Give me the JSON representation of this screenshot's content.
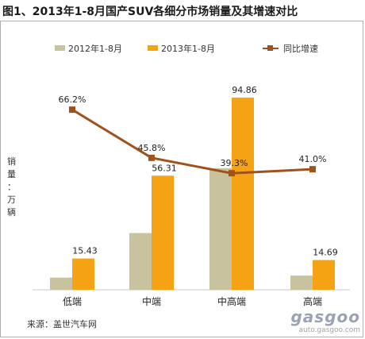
{
  "title": "图1、2013年1-8月国产SUV各细分市场销量及其增速对比",
  "source": "来源：盖世汽车网",
  "watermark": {
    "brand": "gasgoo",
    "url": "auto.gasgoo.com"
  },
  "chart_data": {
    "type": "bar",
    "categories": [
      "低端",
      "中端",
      "中高端",
      "高端"
    ],
    "ylabel": "销量：万辆",
    "series": [
      {
        "name": "2012年1-8月",
        "values": [
          6.0,
          28.0,
          60.0,
          7.0
        ],
        "color": "#c8c29f",
        "kind": "bar"
      },
      {
        "name": "2013年1-8月",
        "values": [
          15.43,
          56.31,
          94.86,
          14.69
        ],
        "color": "#f5a314",
        "kind": "bar",
        "labels": [
          "15.43",
          "56.31",
          "94.86",
          "14.69"
        ]
      },
      {
        "name": "同比增速",
        "values": [
          66.2,
          45.8,
          39.3,
          41.0
        ],
        "color": "#a0521c",
        "kind": "line",
        "labels": [
          "66.2%",
          "45.8%",
          "39.3%",
          "41.0%"
        ]
      }
    ],
    "bar_ylim": [
      0,
      105
    ],
    "line_ylim": [
      -10,
      80
    ],
    "legend_position": "top",
    "grid": false
  }
}
